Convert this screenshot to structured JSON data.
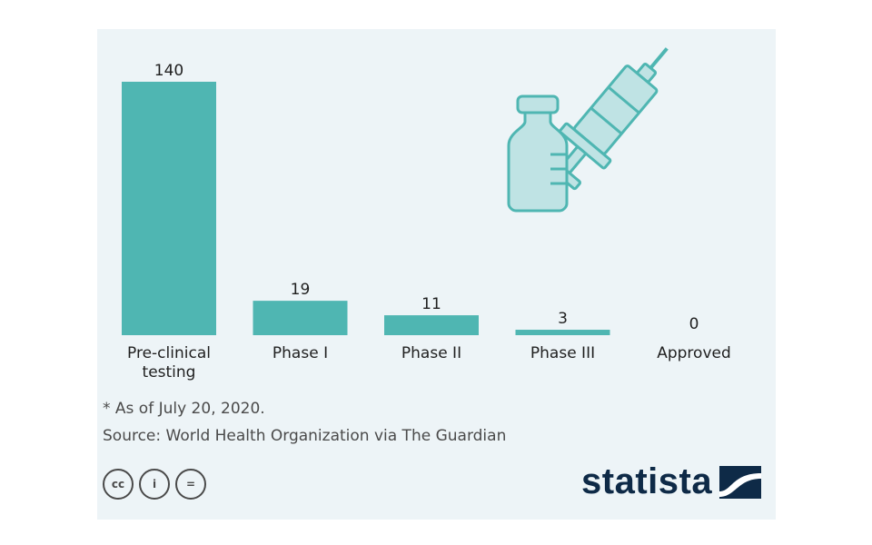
{
  "chart_data": {
    "type": "bar",
    "categories": [
      "Pre-clinical testing",
      "Phase I",
      "Phase II",
      "Phase III",
      "Approved"
    ],
    "category_lines": [
      [
        "Pre-clinical",
        "testing"
      ],
      [
        "Phase I"
      ],
      [
        "Phase II"
      ],
      [
        "Phase III"
      ],
      [
        "Approved"
      ]
    ],
    "values": [
      140,
      19,
      11,
      3,
      0
    ],
    "ylim": [
      0,
      140
    ],
    "title": "",
    "xlabel": "",
    "ylabel": "",
    "grid": false,
    "bar_color": "#4fb6b2"
  },
  "notes": {
    "footnote": "* As of July 20, 2020.",
    "source": "Source: World Health Organization via The Guardian"
  },
  "branding": {
    "name": "statista",
    "cc_labels": [
      "cc",
      "i",
      "="
    ]
  },
  "icons": {
    "illustration": "vaccine-vial-syringe-icon",
    "license": [
      "cc-icon",
      "attribution-icon",
      "no-derivatives-icon"
    ]
  },
  "colors": {
    "background": "#edf4f7",
    "bar": "#4fb6b2",
    "illustration_fill": "#bfe3e4",
    "illustration_stroke": "#4fb6b2",
    "text": "#1f1f1f",
    "muted_text": "#4a4a4a",
    "brand": "#0e2a47"
  }
}
